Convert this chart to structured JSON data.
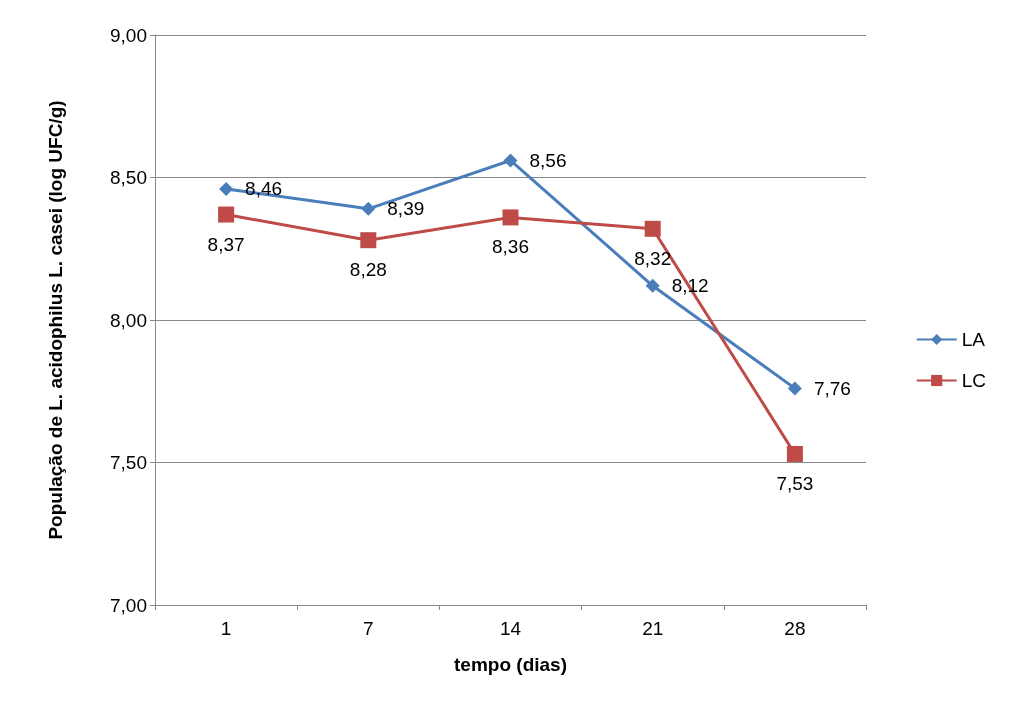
{
  "chart_data": {
    "type": "line",
    "xlabel": "tempo (dias)",
    "ylabel": "População de L. acidophilus L. casei (log UFC/g)",
    "categories": [
      "1",
      "7",
      "14",
      "21",
      "28"
    ],
    "series": [
      {
        "name": "LA",
        "color": "#4a7ebb",
        "marker": "diamond",
        "values": [
          8.46,
          8.39,
          8.56,
          8.12,
          7.76
        ],
        "value_labels": [
          "8,46",
          "8,39",
          "8,56",
          "8,12",
          "7,76"
        ]
      },
      {
        "name": "LC",
        "color": "#be4b48",
        "marker": "square",
        "values": [
          8.37,
          8.28,
          8.36,
          8.32,
          7.53
        ],
        "value_labels": [
          "8,37",
          "8,28",
          "8,36",
          "8,32",
          "7,53"
        ]
      }
    ],
    "ylim": [
      7,
      9
    ],
    "yticks": [
      {
        "value": 7,
        "label": "7,00"
      },
      {
        "value": 7.5,
        "label": "7,50"
      },
      {
        "value": 8,
        "label": "8,00"
      },
      {
        "value": 8.5,
        "label": "8,50"
      },
      {
        "value": 9,
        "label": "9,00"
      }
    ],
    "grid": "y",
    "legend": "right"
  }
}
